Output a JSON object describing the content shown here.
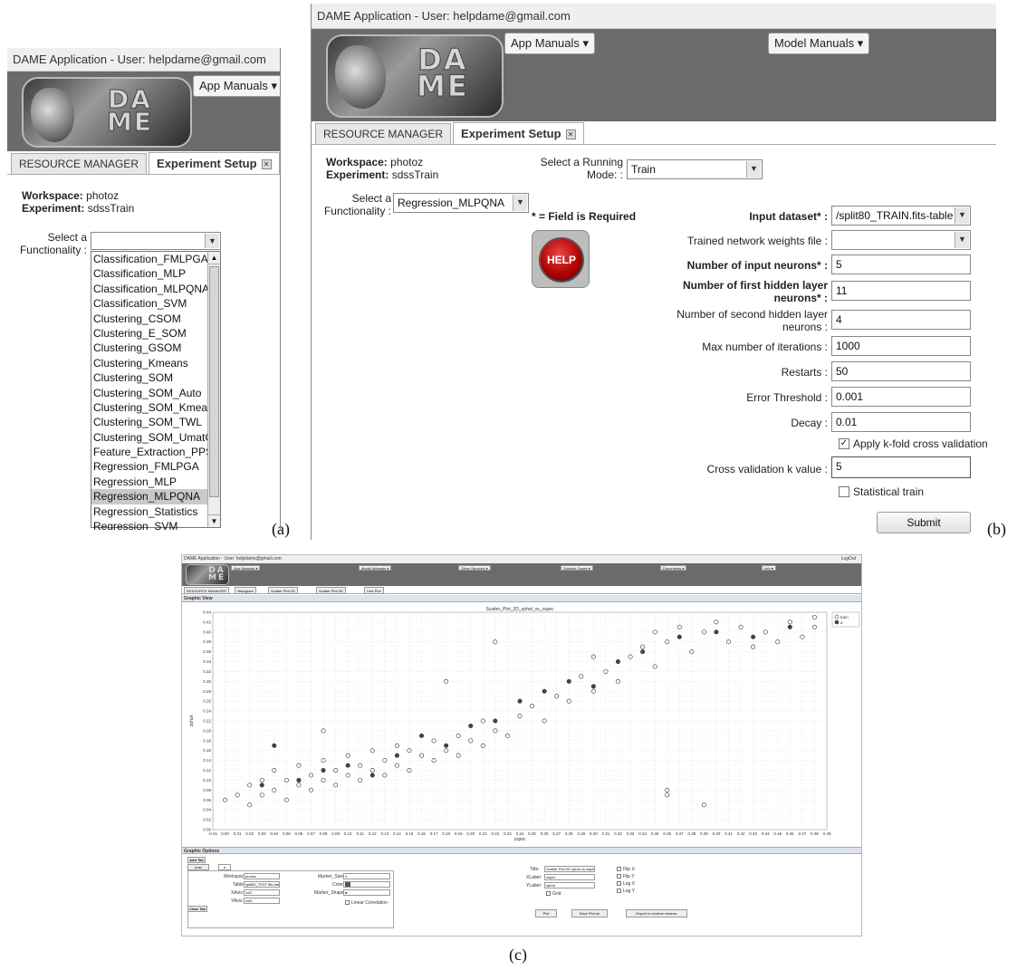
{
  "panel_a": {
    "title": "DAME Application - User: helpdame@gmail.com",
    "logo_text": "DA\nME",
    "app_manuals": "App Manuals ▾",
    "tabs": [
      "RESOURCE MANAGER",
      "Experiment Setup"
    ],
    "workspace_label": "Workspace:",
    "workspace_value": "photoz",
    "experiment_label": "Experiment:",
    "experiment_value": "sdssTrain",
    "select_functionality": "Select a Functionality :",
    "functionality_value": "",
    "options": [
      "Classification_FMLPGA",
      "Classification_MLP",
      "Classification_MLPQNA",
      "Classification_SVM",
      "Clustering_CSOM",
      "Clustering_E_SOM",
      "Clustering_GSOM",
      "Clustering_Kmeans",
      "Clustering_SOM",
      "Clustering_SOM_Auto",
      "Clustering_SOM_Kmeans",
      "Clustering_SOM_TWL",
      "Clustering_SOM_UmatCC",
      "Feature_Extraction_PPS",
      "Regression_FMLPGA",
      "Regression_MLP",
      "Regression_MLPQNA",
      "Regression_Statistics",
      "Regression_SVM"
    ],
    "selected_option": "Regression_MLPQNA",
    "caption": "(a)"
  },
  "panel_b": {
    "title": "DAME Application - User: helpdame@gmail.com",
    "app_manuals": "App Manuals ▾",
    "model_manuals": "Model Manuals ▾",
    "tabs": [
      "RESOURCE MANAGER",
      "Experiment Setup"
    ],
    "workspace_label": "Workspace:",
    "workspace_value": "photoz",
    "experiment_label": "Experiment:",
    "experiment_value": "sdssTrain",
    "running_mode_label": "Select a Running Mode: :",
    "running_mode_value": "Train",
    "functionality_label": "Select a Functionality :",
    "functionality_value": "Regression_MLPQNA",
    "required_note": "* = Field is Required",
    "help_label": "HELP",
    "fields": {
      "input_dataset_label": "Input dataset* :",
      "input_dataset_value": "/split80_TRAIN.fits-table",
      "weights_label": "Trained network weights file :",
      "weights_value": "",
      "input_neurons_label": "Number of input neurons* :",
      "input_neurons_value": "5",
      "first_hidden_label": "Number of first hidden layer neurons* :",
      "first_hidden_value": "11",
      "second_hidden_label": "Number of second hidden layer neurons :",
      "second_hidden_value": "4",
      "max_iter_label": "Max number of iterations :",
      "max_iter_value": "1000",
      "restarts_label": "Restarts :",
      "restarts_value": "50",
      "error_threshold_label": "Error Threshold :",
      "error_threshold_value": "0.001",
      "decay_label": "Decay :",
      "decay_value": "0.01",
      "kfold_label": "Apply k-fold cross validation",
      "kfold_checked": true,
      "cv_k_label": "Cross validation k value :",
      "cv_k_value": "5",
      "stat_train_label": "Statistical train",
      "stat_train_checked": false
    },
    "submit": "Submit",
    "caption": "(b)"
  },
  "panel_c": {
    "title": "DAME Application - User: helpdame@gmail.com",
    "logout": "LogOut",
    "menus": [
      "App Manuals ▾",
      "Model Manuals ▾",
      "Other Services ▾",
      "Science Cases ▾",
      "Documents ▾",
      "Info ▾"
    ],
    "tabs": [
      "RESOURCE MANAGER",
      "Histogram",
      "Scatter Plot 2D",
      "Scatter Plot 3D",
      "Line Plot"
    ],
    "graphic_view": "Graphic View",
    "graphic_options": "Graphic Options",
    "add_tab": "Add Tab",
    "clear_tab": "Clear Tab",
    "opt_tabs": [
      "train",
      "a"
    ],
    "opts": {
      "workspace_label": "Workspace:",
      "workspace_value": "photoz",
      "table_label": "Table:",
      "table_value": "split80_TEST fits-table_res",
      "xaxis_label": "XAxis:",
      "xaxis_value": "col2",
      "yaxis_label": "YAxis:",
      "yaxis_value": "col3",
      "marker_size_label": "Marker_Size:",
      "marker_size_value": "4",
      "color_label": "Color:",
      "marker_shape_label": "Marker_Shape:",
      "marker_shape_value": "●",
      "linear_corr": "Linear Correlation",
      "title_label": "Title:",
      "title_value": "Scatter Plot 2D zphot vs zspec",
      "xlabel_label": "XLabel:",
      "xlabel_value": "zspec",
      "ylabel_label": "YLabel:",
      "ylabel_value": "zphot",
      "grid": "Grid",
      "flip_x": "Flip X",
      "flip_y": "Flip Y",
      "log_x": "Log X",
      "log_y": "Log Y",
      "plot": "Plot",
      "save_plot": "Save Plot as",
      "export": "Export in another window"
    },
    "caption": "(c)"
  },
  "chart_data": {
    "type": "scatter",
    "title": "Scatter_Plot_2D_zphot_vs_zspec",
    "xlabel": "zspec",
    "ylabel": "zphot",
    "xlim": [
      -0.01,
      0.49
    ],
    "ylim": [
      0.0,
      0.44
    ],
    "x_ticks": [
      "-0.01",
      "0.00",
      "0.01",
      "0.02",
      "0.03",
      "0.04",
      "0.05",
      "0.06",
      "0.07",
      "0.08",
      "0.09",
      "0.10",
      "0.11",
      "0.12",
      "0.13",
      "0.14",
      "0.15",
      "0.16",
      "0.17",
      "0.18",
      "0.19",
      "0.20",
      "0.21",
      "0.22",
      "0.23",
      "0.24",
      "0.25",
      "0.26",
      "0.27",
      "0.28",
      "0.29",
      "0.30",
      "0.31",
      "0.32",
      "0.33",
      "0.34",
      "0.35",
      "0.36",
      "0.37",
      "0.38",
      "0.39",
      "0.40",
      "0.41",
      "0.42",
      "0.43",
      "0.44",
      "0.45",
      "0.46",
      "0.47",
      "0.48",
      "0.49"
    ],
    "y_ticks": [
      "0.00",
      "0.02",
      "0.04",
      "0.06",
      "0.08",
      "0.10",
      "0.12",
      "0.14",
      "0.16",
      "0.18",
      "0.20",
      "0.22",
      "0.24",
      "0.26",
      "0.28",
      "0.30",
      "0.32",
      "0.34",
      "0.36",
      "0.38",
      "0.40",
      "0.42",
      "0.44"
    ],
    "legend": [
      "train",
      "a"
    ],
    "legend_position": "top-right",
    "grid": true,
    "series": [
      {
        "name": "train",
        "marker": "open-circle",
        "points": [
          [
            0.0,
            0.06
          ],
          [
            0.01,
            0.07
          ],
          [
            0.02,
            0.05
          ],
          [
            0.02,
            0.09
          ],
          [
            0.03,
            0.07
          ],
          [
            0.03,
            0.1
          ],
          [
            0.04,
            0.08
          ],
          [
            0.04,
            0.12
          ],
          [
            0.05,
            0.06
          ],
          [
            0.05,
            0.1
          ],
          [
            0.06,
            0.09
          ],
          [
            0.06,
            0.13
          ],
          [
            0.07,
            0.08
          ],
          [
            0.07,
            0.11
          ],
          [
            0.08,
            0.1
          ],
          [
            0.08,
            0.14
          ],
          [
            0.08,
            0.2
          ],
          [
            0.09,
            0.09
          ],
          [
            0.09,
            0.12
          ],
          [
            0.1,
            0.11
          ],
          [
            0.1,
            0.15
          ],
          [
            0.11,
            0.1
          ],
          [
            0.11,
            0.13
          ],
          [
            0.12,
            0.12
          ],
          [
            0.12,
            0.16
          ],
          [
            0.13,
            0.11
          ],
          [
            0.13,
            0.14
          ],
          [
            0.14,
            0.13
          ],
          [
            0.14,
            0.17
          ],
          [
            0.15,
            0.12
          ],
          [
            0.15,
            0.16
          ],
          [
            0.16,
            0.15
          ],
          [
            0.17,
            0.14
          ],
          [
            0.17,
            0.18
          ],
          [
            0.18,
            0.16
          ],
          [
            0.18,
            0.3
          ],
          [
            0.19,
            0.15
          ],
          [
            0.19,
            0.19
          ],
          [
            0.2,
            0.18
          ],
          [
            0.21,
            0.17
          ],
          [
            0.21,
            0.22
          ],
          [
            0.22,
            0.2
          ],
          [
            0.22,
            0.38
          ],
          [
            0.23,
            0.19
          ],
          [
            0.24,
            0.23
          ],
          [
            0.25,
            0.25
          ],
          [
            0.26,
            0.22
          ],
          [
            0.27,
            0.27
          ],
          [
            0.28,
            0.26
          ],
          [
            0.29,
            0.31
          ],
          [
            0.3,
            0.28
          ],
          [
            0.3,
            0.35
          ],
          [
            0.31,
            0.32
          ],
          [
            0.32,
            0.3
          ],
          [
            0.33,
            0.35
          ],
          [
            0.34,
            0.37
          ],
          [
            0.35,
            0.33
          ],
          [
            0.35,
            0.4
          ],
          [
            0.36,
            0.38
          ],
          [
            0.36,
            0.07
          ],
          [
            0.36,
            0.08
          ],
          [
            0.37,
            0.41
          ],
          [
            0.38,
            0.36
          ],
          [
            0.39,
            0.4
          ],
          [
            0.39,
            0.05
          ],
          [
            0.4,
            0.42
          ],
          [
            0.41,
            0.38
          ],
          [
            0.42,
            0.41
          ],
          [
            0.43,
            0.37
          ],
          [
            0.44,
            0.4
          ],
          [
            0.45,
            0.38
          ],
          [
            0.46,
            0.42
          ],
          [
            0.47,
            0.39
          ],
          [
            0.48,
            0.43
          ],
          [
            0.48,
            0.41
          ]
        ]
      },
      {
        "name": "a",
        "marker": "filled-circle",
        "points": [
          [
            0.03,
            0.09
          ],
          [
            0.04,
            0.17
          ],
          [
            0.06,
            0.1
          ],
          [
            0.08,
            0.12
          ],
          [
            0.1,
            0.13
          ],
          [
            0.12,
            0.11
          ],
          [
            0.14,
            0.15
          ],
          [
            0.16,
            0.19
          ],
          [
            0.18,
            0.17
          ],
          [
            0.2,
            0.21
          ],
          [
            0.22,
            0.22
          ],
          [
            0.24,
            0.26
          ],
          [
            0.26,
            0.28
          ],
          [
            0.28,
            0.3
          ],
          [
            0.3,
            0.29
          ],
          [
            0.32,
            0.34
          ],
          [
            0.34,
            0.36
          ],
          [
            0.37,
            0.39
          ],
          [
            0.4,
            0.4
          ],
          [
            0.43,
            0.39
          ],
          [
            0.46,
            0.41
          ]
        ]
      }
    ]
  }
}
